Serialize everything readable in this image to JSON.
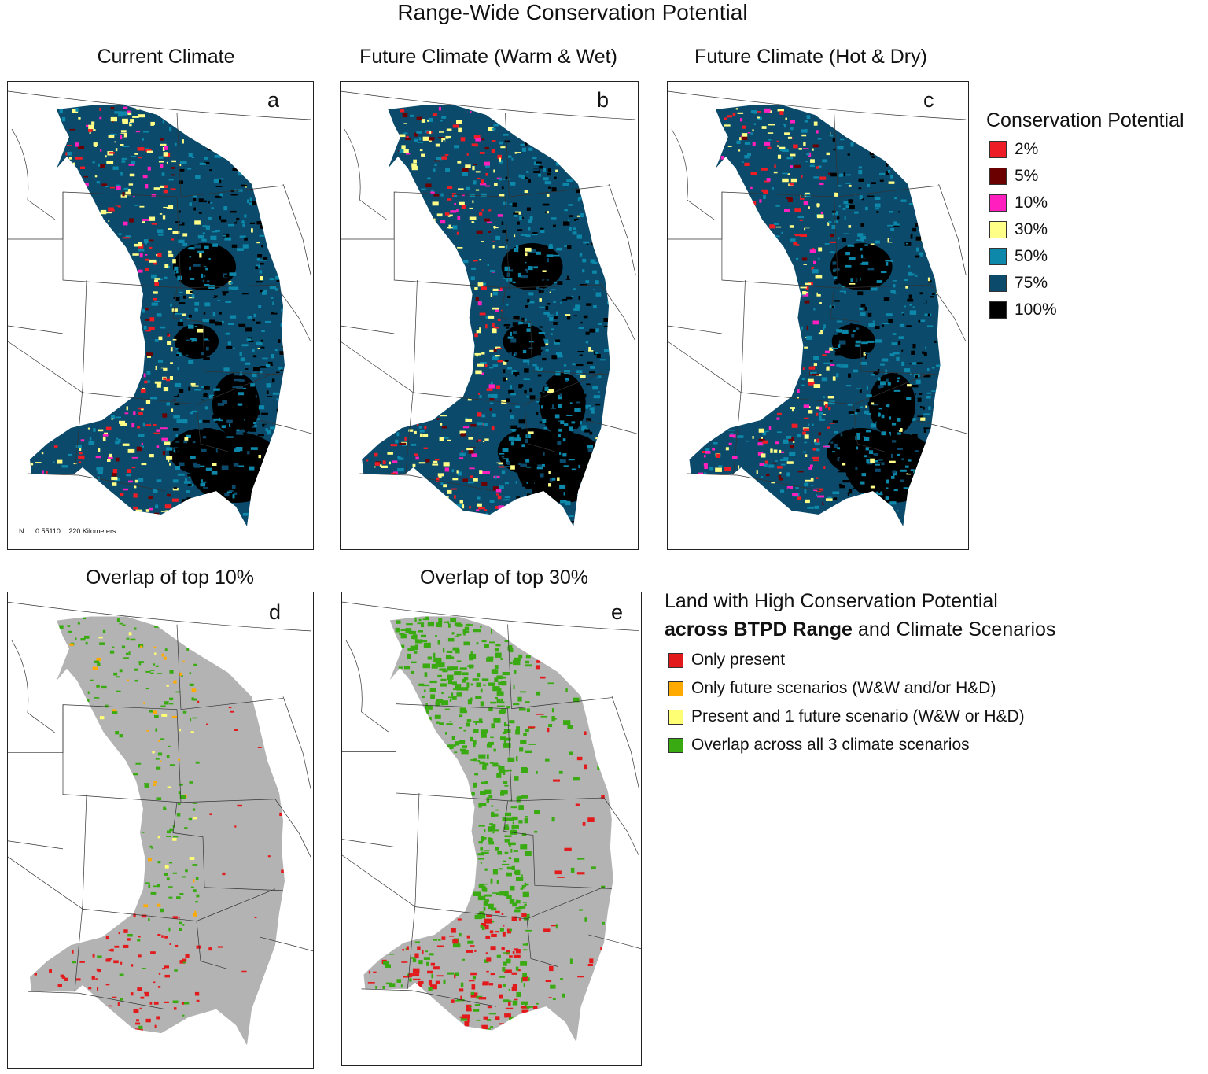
{
  "title": "Range-Wide Conservation Potential",
  "colors": {
    "c2": "#ee1c25",
    "c5": "#6b0000",
    "c10": "#ff1fbf",
    "c30": "#ffff88",
    "c50": "#0d88aa",
    "c75": "#0b4a6a",
    "c100": "#000000",
    "grey": "#b3b3b3",
    "red": "#e31a1c",
    "orange": "#ffaa00",
    "yellow": "#ffff73",
    "green": "#3aaa12"
  },
  "panels": [
    {
      "id": "a",
      "title": "Current Climate",
      "letter": "a"
    },
    {
      "id": "b",
      "title": "Future Climate (Warm & Wet)",
      "letter": "b"
    },
    {
      "id": "c",
      "title": "Future Climate (Hot & Dry)",
      "letter": "c"
    },
    {
      "id": "d",
      "title": "Overlap of top 10%",
      "letter": "d"
    },
    {
      "id": "e",
      "title": "Overlap of top 30%",
      "letter": "e"
    }
  ],
  "legend_potential": {
    "title": "Conservation Potential",
    "items": [
      {
        "label": "2%",
        "color": "#ee1c25"
      },
      {
        "label": "5%",
        "color": "#6b0000"
      },
      {
        "label": "10%",
        "color": "#ff1fbf"
      },
      {
        "label": "30%",
        "color": "#ffff88"
      },
      {
        "label": "50%",
        "color": "#0d88aa"
      },
      {
        "label": "75%",
        "color": "#0b4a6a"
      },
      {
        "label": "100%",
        "color": "#000000"
      }
    ]
  },
  "legend_overlap": {
    "title_line1": "Land with High Conservation Potential",
    "title_line2_bold": "across BTPD Range",
    "title_line2_rest": " and Climate Scenarios",
    "items": [
      {
        "label": "Only present",
        "color": "#e31a1c"
      },
      {
        "label": "Only future scenarios (W&W and/or H&D)",
        "color": "#ffaa00"
      },
      {
        "label": "Present and 1 future scenario (W&W or H&D)",
        "color": "#ffff73"
      },
      {
        "label": "Overlap across all 3 climate scenarios",
        "color": "#3aaa12"
      }
    ]
  },
  "scalebar": {
    "north": "N",
    "ticks": "0  55110",
    "label": "220 Kilometers"
  }
}
